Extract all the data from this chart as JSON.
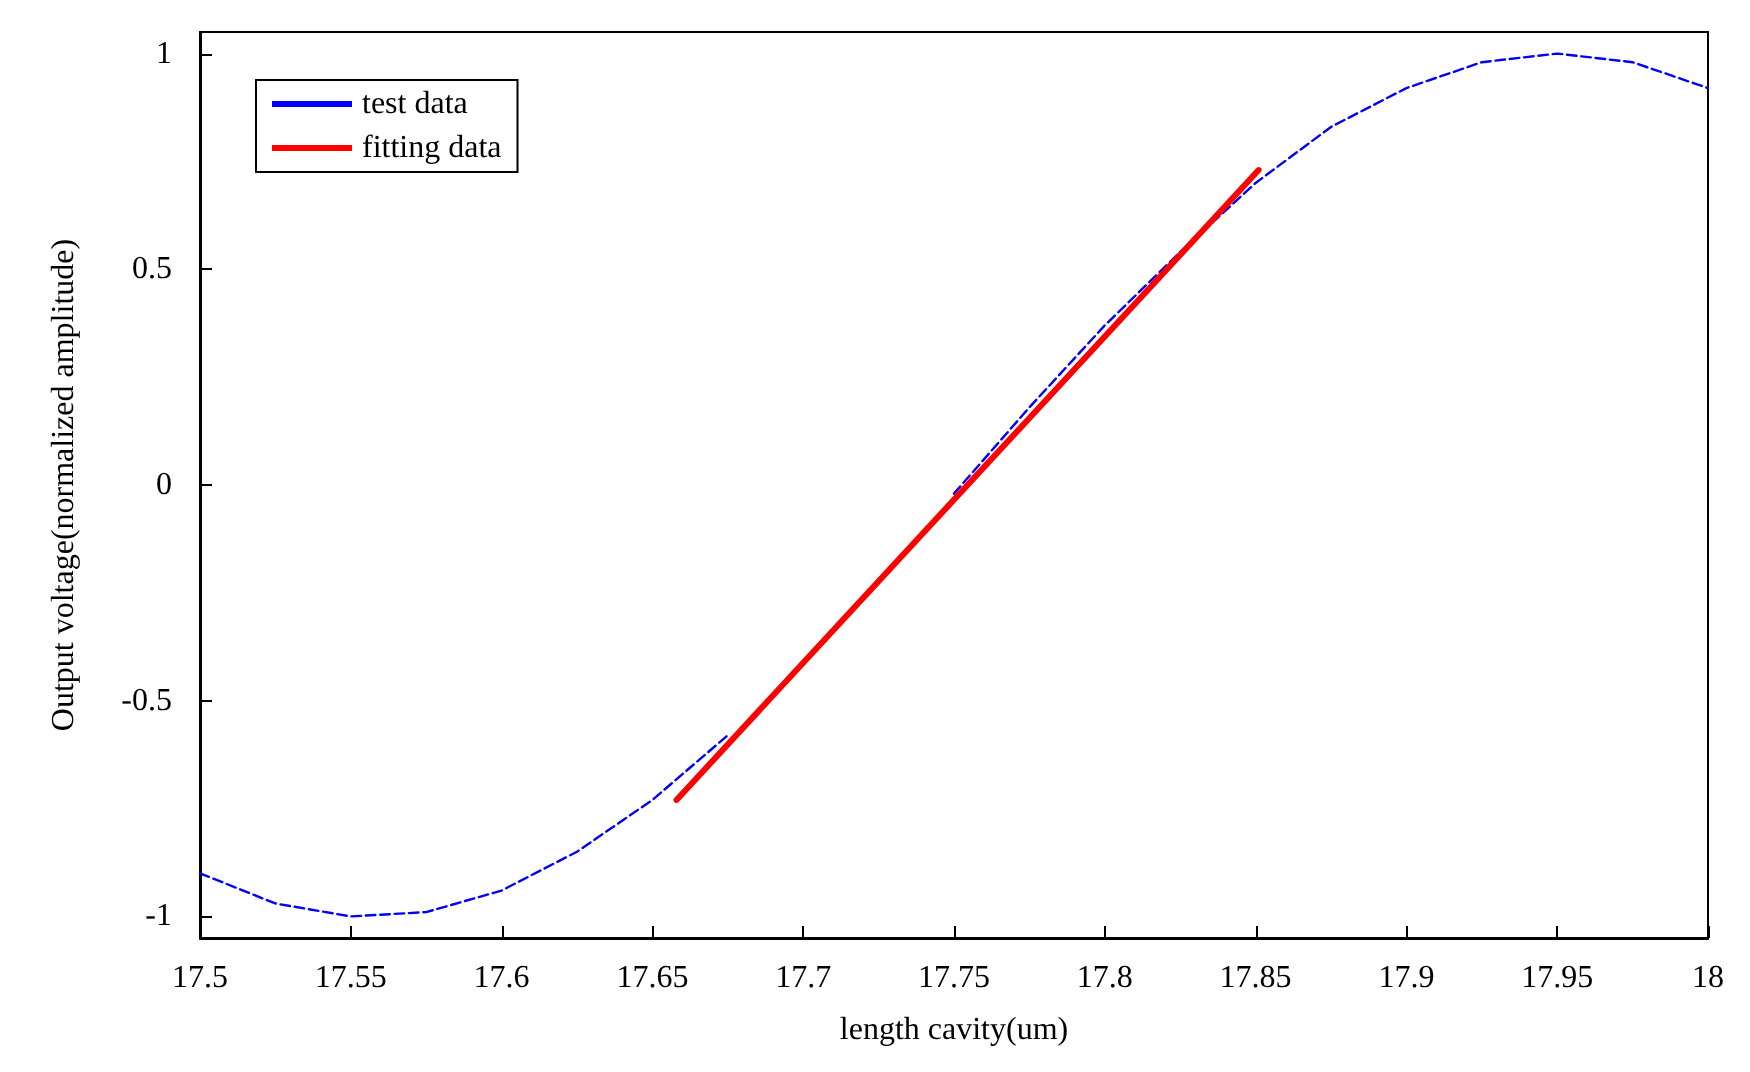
{
  "chart_data": {
    "type": "line",
    "xlabel": "length cavity(um)",
    "ylabel": "Output voltage(normalized amplitude)",
    "xlim": [
      17.5,
      18
    ],
    "xticks": [
      17.5,
      17.55,
      17.6,
      17.65,
      17.7,
      17.75,
      17.8,
      17.85,
      17.9,
      17.95,
      18
    ],
    "ylim": [
      -1.05,
      1.05
    ],
    "yticks": [
      -1,
      -0.5,
      0,
      0.5,
      1
    ],
    "grid": false,
    "legend": "top left",
    "series": [
      {
        "name": "test data",
        "color": "#0000ff",
        "line_style": "dashed",
        "x": [
          17.5,
          17.525,
          17.55,
          17.575,
          17.6,
          17.625,
          17.65,
          17.675,
          17.7,
          17.725,
          17.75,
          17.775,
          17.8,
          17.825,
          17.85,
          17.875,
          17.9,
          17.925,
          17.95,
          17.975,
          18
        ],
        "values": [
          -0.9,
          -0.97,
          -1.0,
          -0.99,
          -0.94,
          -0.85,
          -0.73,
          -0.58,
          null,
          null,
          -0.02,
          0.18,
          0.37,
          0.54,
          0.7,
          0.83,
          0.92,
          0.98,
          1.0,
          0.98,
          0.92
        ]
      },
      {
        "name": "fitting data",
        "color": "#ff0000",
        "line_style": "solid",
        "x": [
          17.658,
          17.851
        ],
        "values": [
          -0.73,
          0.73
        ]
      }
    ]
  }
}
